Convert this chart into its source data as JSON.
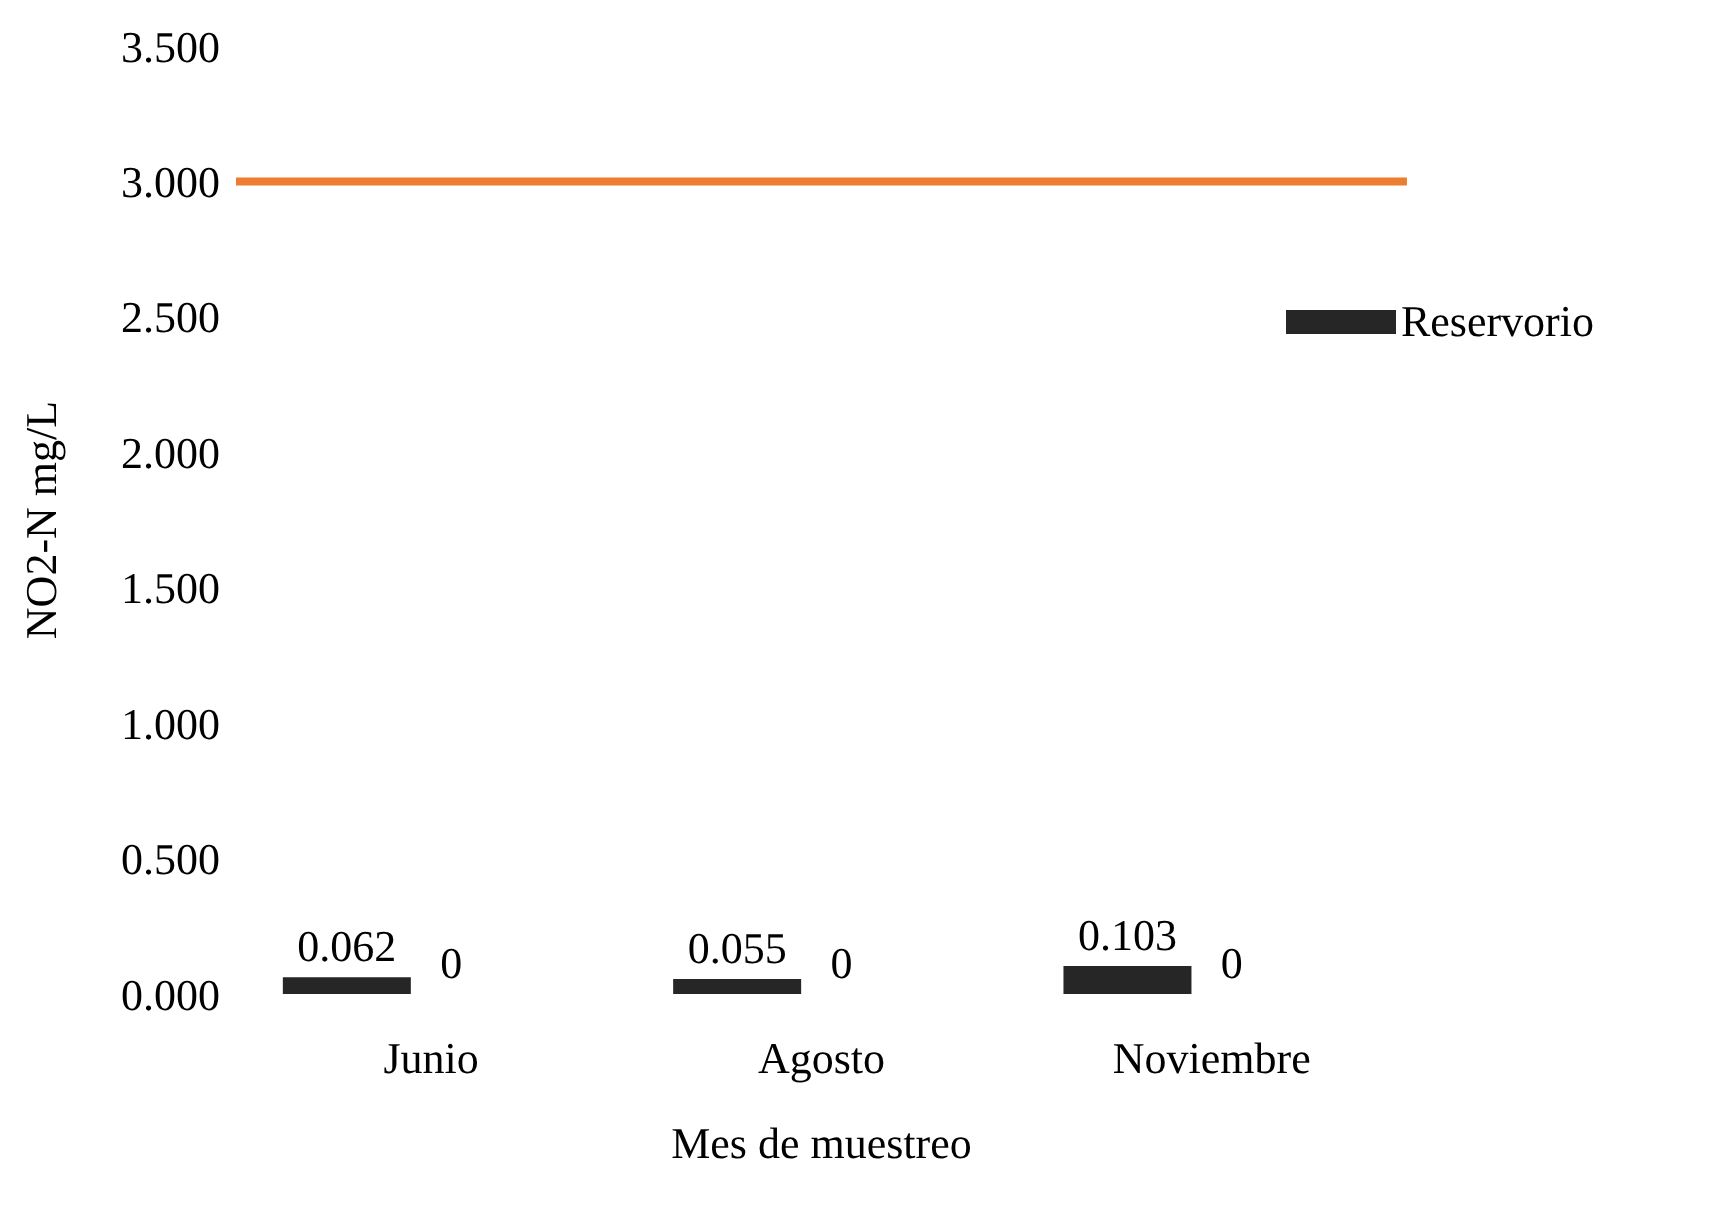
{
  "chart_data": {
    "type": "bar",
    "xlabel": "Mes de muestreo",
    "ylabel": "NO2-N mg/L",
    "categories": [
      "Junio",
      "Agosto",
      "Noviembre"
    ],
    "series": [
      {
        "name": "Reservorio",
        "color": "#262626",
        "values": [
          0.062,
          0.055,
          0.103
        ]
      },
      {
        "color": "#7f7f7f",
        "values": [
          0,
          0,
          0
        ]
      }
    ],
    "ylim": [
      0,
      3.5
    ],
    "yticks": [
      {
        "value": 0,
        "label": "0.000"
      },
      {
        "value": 0.5,
        "label": "0.500"
      },
      {
        "value": 1,
        "label": "1.000"
      },
      {
        "value": 1.5,
        "label": "1.500"
      },
      {
        "value": 2,
        "label": "2.000"
      },
      {
        "value": 2.5,
        "label": "2.500"
      },
      {
        "value": 3,
        "label": "3.000"
      },
      {
        "value": 3.5,
        "label": "3.500"
      }
    ],
    "ref_lines": [
      {
        "axis": "y",
        "value": 3,
        "color": "#ed7d31"
      }
    ],
    "data_labels": true,
    "grid": false,
    "legend": "right"
  }
}
